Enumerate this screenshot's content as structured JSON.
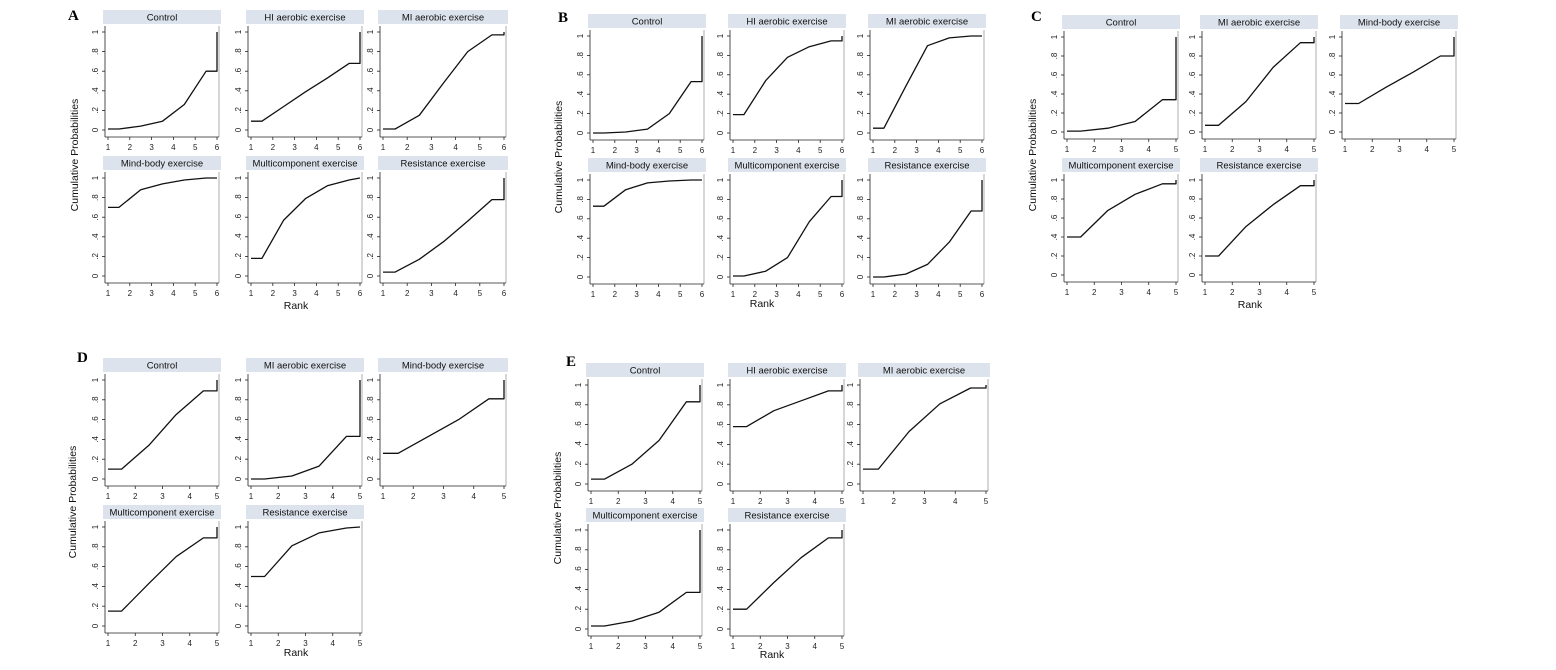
{
  "y_title": "Cumulative Probabilities",
  "x_title": "Rank",
  "y_ticks": [
    "0",
    ".2",
    ".4",
    ".6",
    ".8",
    "1"
  ],
  "chart_data": [
    {
      "type": "line",
      "label": "A",
      "xlabel": "Rank",
      "ylabel": "Cumulative Probabilities",
      "xlim": [
        1,
        6
      ],
      "ylim": [
        0,
        1
      ],
      "x_ticks": [
        1,
        2,
        3,
        4,
        5,
        6
      ],
      "series": [
        {
          "name": "Control",
          "points": [
            [
              1,
              0.01
            ],
            [
              1.5,
              0.01
            ],
            [
              2.5,
              0.04
            ],
            [
              3.5,
              0.09
            ],
            [
              4.5,
              0.26
            ],
            [
              5.5,
              0.6
            ],
            [
              6,
              0.6
            ],
            [
              6,
              1
            ]
          ]
        },
        {
          "name": "HI aerobic exercise",
          "points": [
            [
              1,
              0.09
            ],
            [
              1.5,
              0.09
            ],
            [
              2.5,
              0.24
            ],
            [
              3.5,
              0.39
            ],
            [
              4.5,
              0.53
            ],
            [
              5.5,
              0.68
            ],
            [
              6,
              0.68
            ],
            [
              6,
              1
            ]
          ]
        },
        {
          "name": "MI aerobic exercise",
          "points": [
            [
              1,
              0.01
            ],
            [
              1.5,
              0.01
            ],
            [
              2.5,
              0.15
            ],
            [
              3.5,
              0.48
            ],
            [
              4.5,
              0.8
            ],
            [
              5.5,
              0.97
            ],
            [
              6,
              0.97
            ],
            [
              6,
              1
            ]
          ]
        },
        {
          "name": "Mind-body exercise",
          "points": [
            [
              1,
              0.7
            ],
            [
              1.5,
              0.7
            ],
            [
              2.5,
              0.88
            ],
            [
              3.5,
              0.94
            ],
            [
              4.5,
              0.98
            ],
            [
              5.5,
              1
            ],
            [
              6,
              1
            ]
          ]
        },
        {
          "name": "Multicomponent exercise",
          "points": [
            [
              1,
              0.18
            ],
            [
              1.5,
              0.18
            ],
            [
              2.5,
              0.57
            ],
            [
              3.5,
              0.79
            ],
            [
              4.5,
              0.92
            ],
            [
              5.5,
              0.98
            ],
            [
              6,
              1
            ]
          ]
        },
        {
          "name": "Resistance exercise",
          "points": [
            [
              1,
              0.04
            ],
            [
              1.5,
              0.04
            ],
            [
              2.5,
              0.17
            ],
            [
              3.5,
              0.35
            ],
            [
              4.5,
              0.56
            ],
            [
              5.5,
              0.78
            ],
            [
              6,
              0.78
            ],
            [
              6,
              1
            ]
          ]
        }
      ]
    },
    {
      "type": "line",
      "label": "B",
      "xlabel": "Rank",
      "ylabel": "Cumulative Probabilities",
      "xlim": [
        1,
        6
      ],
      "ylim": [
        0,
        1
      ],
      "x_ticks": [
        1,
        2,
        3,
        4,
        5,
        6
      ],
      "series": [
        {
          "name": "Control",
          "points": [
            [
              1,
              0
            ],
            [
              1.5,
              0
            ],
            [
              2.5,
              0.01
            ],
            [
              3.5,
              0.04
            ],
            [
              4.5,
              0.2
            ],
            [
              5.5,
              0.53
            ],
            [
              6,
              0.53
            ],
            [
              6,
              1
            ]
          ]
        },
        {
          "name": "HI aerobic exercise",
          "points": [
            [
              1,
              0.19
            ],
            [
              1.5,
              0.19
            ],
            [
              2.5,
              0.54
            ],
            [
              3.5,
              0.78
            ],
            [
              4.5,
              0.89
            ],
            [
              5.5,
              0.95
            ],
            [
              6,
              0.95
            ],
            [
              6,
              1
            ]
          ]
        },
        {
          "name": "MI aerobic exercise",
          "points": [
            [
              1,
              0.05
            ],
            [
              1.5,
              0.05
            ],
            [
              2.5,
              0.48
            ],
            [
              3.5,
              0.9
            ],
            [
              4.5,
              0.98
            ],
            [
              5.5,
              1
            ],
            [
              6,
              1
            ]
          ]
        },
        {
          "name": "Mind-body exercise",
          "points": [
            [
              1,
              0.73
            ],
            [
              1.5,
              0.73
            ],
            [
              2.5,
              0.9
            ],
            [
              3.5,
              0.97
            ],
            [
              4.5,
              0.99
            ],
            [
              5.5,
              1
            ],
            [
              6,
              1
            ]
          ]
        },
        {
          "name": "Multicomponent exercise",
          "points": [
            [
              1,
              0.01
            ],
            [
              1.5,
              0.01
            ],
            [
              2.5,
              0.06
            ],
            [
              3.5,
              0.2
            ],
            [
              4.5,
              0.57
            ],
            [
              5.5,
              0.83
            ],
            [
              6,
              0.83
            ],
            [
              6,
              1
            ]
          ]
        },
        {
          "name": "Resistance exercise",
          "points": [
            [
              1,
              0
            ],
            [
              1.5,
              0
            ],
            [
              2.5,
              0.03
            ],
            [
              3.5,
              0.13
            ],
            [
              4.5,
              0.36
            ],
            [
              5.5,
              0.68
            ],
            [
              6,
              0.68
            ],
            [
              6,
              1
            ]
          ]
        }
      ]
    },
    {
      "type": "line",
      "label": "C",
      "xlabel": "Rank",
      "ylabel": "Cumulative Probabilities",
      "xlim": [
        1,
        5
      ],
      "ylim": [
        0,
        1
      ],
      "x_ticks": [
        1,
        2,
        3,
        4,
        5
      ],
      "series": [
        {
          "name": "Control",
          "points": [
            [
              1,
              0.01
            ],
            [
              1.5,
              0.01
            ],
            [
              2.5,
              0.04
            ],
            [
              3.5,
              0.11
            ],
            [
              4.5,
              0.34
            ],
            [
              5,
              0.34
            ],
            [
              5,
              1
            ]
          ]
        },
        {
          "name": "MI aerobic exercise",
          "points": [
            [
              1,
              0.07
            ],
            [
              1.5,
              0.07
            ],
            [
              2.5,
              0.32
            ],
            [
              3.5,
              0.68
            ],
            [
              4.5,
              0.94
            ],
            [
              5,
              0.94
            ],
            [
              5,
              1
            ]
          ]
        },
        {
          "name": "Mind-body exercise",
          "points": [
            [
              1,
              0.3
            ],
            [
              1.5,
              0.3
            ],
            [
              2.5,
              0.47
            ],
            [
              3.5,
              0.63
            ],
            [
              4.5,
              0.8
            ],
            [
              5,
              0.8
            ],
            [
              5,
              1
            ]
          ]
        },
        {
          "name": "Multicomponent exercise",
          "points": [
            [
              1,
              0.4
            ],
            [
              1.5,
              0.4
            ],
            [
              2.5,
              0.68
            ],
            [
              3.5,
              0.85
            ],
            [
              4.5,
              0.96
            ],
            [
              5,
              0.96
            ],
            [
              5,
              1
            ]
          ]
        },
        {
          "name": "Resistance exercise",
          "points": [
            [
              1,
              0.2
            ],
            [
              1.5,
              0.2
            ],
            [
              2.5,
              0.51
            ],
            [
              3.5,
              0.74
            ],
            [
              4.5,
              0.94
            ],
            [
              5,
              0.94
            ],
            [
              5,
              1
            ]
          ]
        }
      ]
    },
    {
      "type": "line",
      "label": "D",
      "xlabel": "Rank",
      "ylabel": "Cumulative Probabilities",
      "xlim": [
        1,
        5
      ],
      "ylim": [
        0,
        1
      ],
      "x_ticks": [
        1,
        2,
        3,
        4,
        5
      ],
      "series": [
        {
          "name": "Control",
          "points": [
            [
              1,
              0.1
            ],
            [
              1.5,
              0.1
            ],
            [
              2.5,
              0.34
            ],
            [
              3.5,
              0.65
            ],
            [
              4.5,
              0.89
            ],
            [
              5,
              0.89
            ],
            [
              5,
              1
            ]
          ]
        },
        {
          "name": "MI aerobic exercise",
          "points": [
            [
              1,
              0
            ],
            [
              1.5,
              0
            ],
            [
              2.5,
              0.03
            ],
            [
              3.5,
              0.13
            ],
            [
              4.5,
              0.43
            ],
            [
              5,
              0.43
            ],
            [
              5,
              1
            ]
          ]
        },
        {
          "name": "Mind-body exercise",
          "points": [
            [
              1,
              0.26
            ],
            [
              1.5,
              0.26
            ],
            [
              2.5,
              0.43
            ],
            [
              3.5,
              0.6
            ],
            [
              4.5,
              0.81
            ],
            [
              5,
              0.81
            ],
            [
              5,
              1
            ]
          ]
        },
        {
          "name": "Multicomponent exercise",
          "points": [
            [
              1,
              0.15
            ],
            [
              1.5,
              0.15
            ],
            [
              2.5,
              0.43
            ],
            [
              3.5,
              0.7
            ],
            [
              4.5,
              0.89
            ],
            [
              5,
              0.89
            ],
            [
              5,
              1
            ]
          ]
        },
        {
          "name": "Resistance exercise",
          "points": [
            [
              1,
              0.5
            ],
            [
              1.5,
              0.5
            ],
            [
              2.5,
              0.81
            ],
            [
              3.5,
              0.94
            ],
            [
              4.5,
              0.99
            ],
            [
              5,
              1
            ]
          ]
        }
      ]
    },
    {
      "type": "line",
      "label": "E",
      "xlabel": "Rank",
      "ylabel": "Cumulative Probabilities",
      "xlim": [
        1,
        5
      ],
      "ylim": [
        0,
        1
      ],
      "x_ticks": [
        1,
        2,
        3,
        4,
        5
      ],
      "series": [
        {
          "name": "Control",
          "points": [
            [
              1,
              0.05
            ],
            [
              1.5,
              0.05
            ],
            [
              2.5,
              0.2
            ],
            [
              3.5,
              0.44
            ],
            [
              4.5,
              0.83
            ],
            [
              5,
              0.83
            ],
            [
              5,
              1
            ]
          ]
        },
        {
          "name": "HI aerobic exercise",
          "points": [
            [
              1,
              0.58
            ],
            [
              1.5,
              0.58
            ],
            [
              2.5,
              0.74
            ],
            [
              3.5,
              0.84
            ],
            [
              4.5,
              0.94
            ],
            [
              5,
              0.94
            ],
            [
              5,
              1
            ]
          ]
        },
        {
          "name": "MI aerobic exercise",
          "points": [
            [
              1,
              0.15
            ],
            [
              1.5,
              0.15
            ],
            [
              2.5,
              0.53
            ],
            [
              3.5,
              0.81
            ],
            [
              4.5,
              0.97
            ],
            [
              5,
              0.97
            ],
            [
              5,
              1
            ]
          ]
        },
        {
          "name": "Multicomponent exercise",
          "points": [
            [
              1,
              0.03
            ],
            [
              1.5,
              0.03
            ],
            [
              2.5,
              0.08
            ],
            [
              3.5,
              0.17
            ],
            [
              4.5,
              0.37
            ],
            [
              5,
              0.37
            ],
            [
              5,
              1
            ]
          ]
        },
        {
          "name": "Resistance exercise",
          "points": [
            [
              1,
              0.2
            ],
            [
              1.5,
              0.2
            ],
            [
              2.5,
              0.47
            ],
            [
              3.5,
              0.72
            ],
            [
              4.5,
              0.92
            ],
            [
              5,
              0.92
            ],
            [
              5,
              1
            ]
          ]
        }
      ]
    }
  ]
}
